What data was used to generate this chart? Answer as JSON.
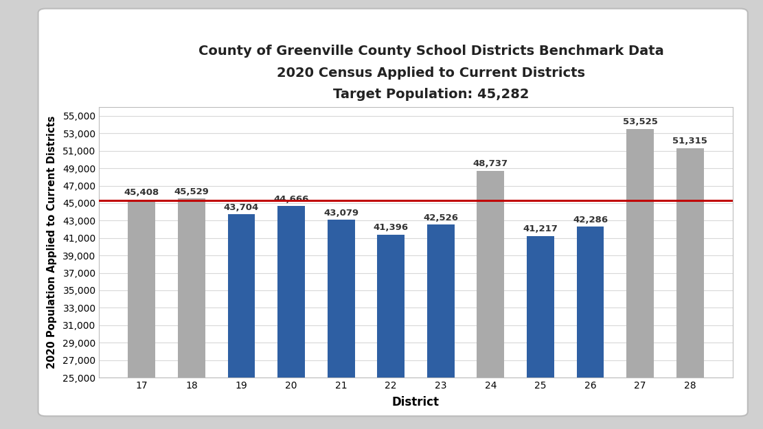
{
  "title_line1": "County of Greenville County School Districts Benchmark Data",
  "title_line2": "2020 Census Applied to Current Districts",
  "title_line3": "Target Population: 45,282",
  "xlabel": "District",
  "ylabel": "2020 Population Applied to Current Districts",
  "districts": [
    17,
    18,
    19,
    20,
    21,
    22,
    23,
    24,
    25,
    26,
    27,
    28
  ],
  "values": [
    45408,
    45529,
    43704,
    44666,
    43079,
    41396,
    42526,
    48737,
    41217,
    42286,
    53525,
    51315
  ],
  "bar_colors": [
    "#aaaaaa",
    "#aaaaaa",
    "#2e5fa3",
    "#2e5fa3",
    "#2e5fa3",
    "#2e5fa3",
    "#2e5fa3",
    "#aaaaaa",
    "#2e5fa3",
    "#2e5fa3",
    "#aaaaaa",
    "#aaaaaa"
  ],
  "target_line": 45282,
  "target_line_color": "#c00000",
  "ylim_min": 25000,
  "ylim_max": 56000,
  "ytick_step": 2000,
  "figure_background": "#d0d0d0",
  "plot_background": "#ffffff",
  "grid_color": "#d8d8d8",
  "title_fontsize": 14,
  "axis_label_fontsize": 12,
  "ylabel_fontsize": 10.5,
  "tick_fontsize": 10,
  "bar_label_fontsize": 9.5,
  "bar_width": 0.55
}
